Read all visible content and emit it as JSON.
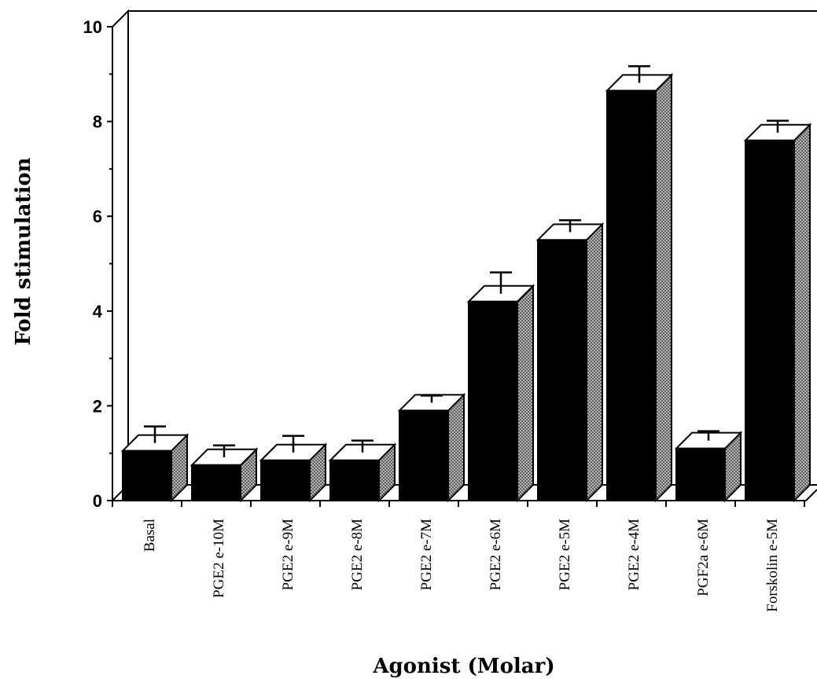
{
  "chart_data": {
    "type": "bar",
    "title": "",
    "xlabel": "Agonist (Molar)",
    "ylabel": "Fold stimulation",
    "categories": [
      "Basal",
      "PGE2 e-10M",
      "PGE2 e-9M",
      "PGE2 e-8M",
      "PGE2 e-7M",
      "PGE2 e-6M",
      "PGE2 e-5M",
      "PGE2 e-4M",
      "PGF2a e-6M",
      "Forskolin e-5M"
    ],
    "values": [
      1.05,
      0.75,
      0.85,
      0.85,
      1.9,
      4.2,
      5.5,
      8.65,
      1.1,
      7.6
    ],
    "errors": [
      0.35,
      0.25,
      0.35,
      0.25,
      0.15,
      0.45,
      0.25,
      0.35,
      0.2,
      0.25
    ],
    "ylim": [
      0,
      10
    ],
    "yticks": [
      "0",
      "2",
      "4",
      "6",
      "8",
      "10"
    ],
    "grid": false,
    "bar_style": "3d",
    "colors": {
      "bar_front": "#000000",
      "bar_top": "#ffffff",
      "bar_side": "#8a8a8a",
      "axis": "#000000"
    }
  }
}
